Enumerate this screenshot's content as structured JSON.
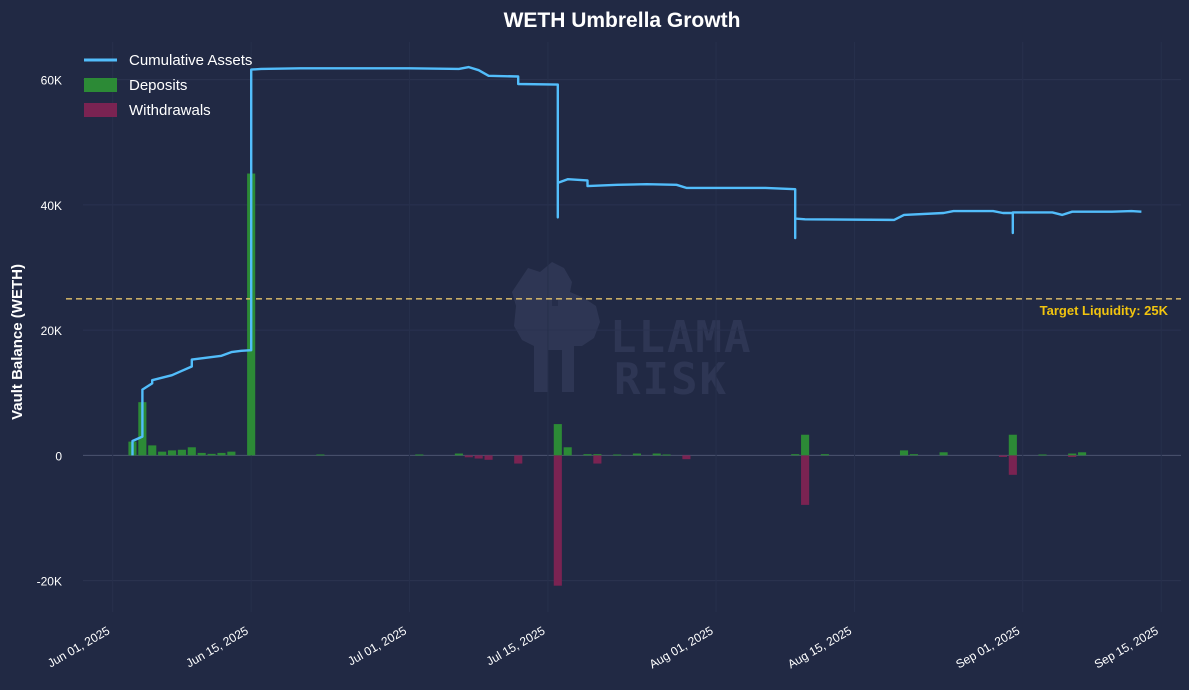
{
  "chart_data": {
    "type": "bar+line",
    "title": "WETH Umbrella Growth",
    "ylabel": "Vault Balance (WETH)",
    "xlabel": "",
    "xlim": [
      "2025-05-29",
      "2025-09-17"
    ],
    "ylim": [
      -25000,
      66000
    ],
    "y_ticks": [
      -20000,
      0,
      20000,
      40000,
      60000
    ],
    "y_tick_labels": [
      "-20K",
      "0",
      "20K",
      "40K",
      "60K"
    ],
    "x_ticks": [
      "2025-06-01",
      "2025-06-15",
      "2025-07-01",
      "2025-07-15",
      "2025-08-01",
      "2025-08-15",
      "2025-09-01",
      "2025-09-15"
    ],
    "x_tick_labels": [
      "Jun 01, 2025",
      "Jun 15, 2025",
      "Jul 01, 2025",
      "Jul 15, 2025",
      "Aug 01, 2025",
      "Aug 15, 2025",
      "Sep 01, 2025",
      "Sep 15, 2025"
    ],
    "legend_position": "top-left",
    "grid": true,
    "target_line": {
      "value": 25000,
      "label": "Target Liquidity: 25K",
      "color": "#e6c46a"
    },
    "series": [
      {
        "name": "Cumulative Assets",
        "kind": "line",
        "color": "#52bdfb",
        "points": [
          [
            "2025-06-03",
            0
          ],
          [
            "2025-06-03",
            2000
          ],
          [
            "2025-06-03",
            2300
          ],
          [
            "2025-06-04",
            3000
          ],
          [
            "2025-06-04",
            4000
          ],
          [
            "2025-06-04",
            8000
          ],
          [
            "2025-06-04",
            10500
          ],
          [
            "2025-06-05",
            11500
          ],
          [
            "2025-06-05",
            12000
          ],
          [
            "2025-06-06",
            12400
          ],
          [
            "2025-06-07",
            12800
          ],
          [
            "2025-06-08",
            13500
          ],
          [
            "2025-06-09",
            14200
          ],
          [
            "2025-06-09",
            15300
          ],
          [
            "2025-06-10",
            15500
          ],
          [
            "2025-06-11",
            15700
          ],
          [
            "2025-06-12",
            15900
          ],
          [
            "2025-06-13",
            16500
          ],
          [
            "2025-06-14",
            16700
          ],
          [
            "2025-06-15",
            16800
          ],
          [
            "2025-06-15",
            40000
          ],
          [
            "2025-06-15",
            61600
          ],
          [
            "2025-06-16",
            61700
          ],
          [
            "2025-06-20",
            61800
          ],
          [
            "2025-07-01",
            61800
          ],
          [
            "2025-07-06",
            61700
          ],
          [
            "2025-07-07",
            62000
          ],
          [
            "2025-07-08",
            61500
          ],
          [
            "2025-07-09",
            60600
          ],
          [
            "2025-07-12",
            60500
          ],
          [
            "2025-07-12",
            59300
          ],
          [
            "2025-07-16",
            59200
          ],
          [
            "2025-07-16",
            38000
          ],
          [
            "2025-07-16",
            43500
          ],
          [
            "2025-07-17",
            44100
          ],
          [
            "2025-07-18",
            44000
          ],
          [
            "2025-07-19",
            43900
          ],
          [
            "2025-07-19",
            43000
          ],
          [
            "2025-07-22",
            43200
          ],
          [
            "2025-07-25",
            43300
          ],
          [
            "2025-07-28",
            43200
          ],
          [
            "2025-07-29",
            42700
          ],
          [
            "2025-08-06",
            42700
          ],
          [
            "2025-08-09",
            42500
          ],
          [
            "2025-08-09",
            34700
          ],
          [
            "2025-08-09",
            37800
          ],
          [
            "2025-08-10",
            37700
          ],
          [
            "2025-08-19",
            37600
          ],
          [
            "2025-08-20",
            38400
          ],
          [
            "2025-08-24",
            38700
          ],
          [
            "2025-08-25",
            39000
          ],
          [
            "2025-08-29",
            39000
          ],
          [
            "2025-08-30",
            38700
          ],
          [
            "2025-08-31",
            38700
          ],
          [
            "2025-08-31",
            35500
          ],
          [
            "2025-08-31",
            38800
          ],
          [
            "2025-09-04",
            38800
          ],
          [
            "2025-09-05",
            38400
          ],
          [
            "2025-09-06",
            38900
          ],
          [
            "2025-09-10",
            38900
          ],
          [
            "2025-09-12",
            39000
          ],
          [
            "2025-09-13",
            38900
          ]
        ]
      },
      {
        "name": "Deposits",
        "kind": "bar",
        "color": "#2c8a36",
        "points": [
          [
            "2025-06-03",
            2200
          ],
          [
            "2025-06-04",
            8500
          ],
          [
            "2025-06-05",
            1600
          ],
          [
            "2025-06-06",
            600
          ],
          [
            "2025-06-07",
            800
          ],
          [
            "2025-06-08",
            900
          ],
          [
            "2025-06-09",
            1300
          ],
          [
            "2025-06-10",
            400
          ],
          [
            "2025-06-11",
            250
          ],
          [
            "2025-06-12",
            400
          ],
          [
            "2025-06-13",
            600
          ],
          [
            "2025-06-15",
            45000
          ],
          [
            "2025-06-22",
            150
          ],
          [
            "2025-07-02",
            150
          ],
          [
            "2025-07-06",
            300
          ],
          [
            "2025-07-16",
            5000
          ],
          [
            "2025-07-17",
            1300
          ],
          [
            "2025-07-19",
            200
          ],
          [
            "2025-07-20",
            200
          ],
          [
            "2025-07-22",
            150
          ],
          [
            "2025-07-24",
            300
          ],
          [
            "2025-07-26",
            300
          ],
          [
            "2025-07-27",
            150
          ],
          [
            "2025-08-09",
            200
          ],
          [
            "2025-08-10",
            3300
          ],
          [
            "2025-08-12",
            200
          ],
          [
            "2025-08-20",
            800
          ],
          [
            "2025-08-21",
            200
          ],
          [
            "2025-08-24",
            500
          ],
          [
            "2025-08-31",
            3300
          ],
          [
            "2025-09-03",
            150
          ],
          [
            "2025-09-06",
            300
          ],
          [
            "2025-09-07",
            500
          ]
        ]
      },
      {
        "name": "Withdrawals",
        "kind": "bar",
        "color": "#7a2352",
        "points": [
          [
            "2025-07-07",
            -300
          ],
          [
            "2025-07-08",
            -500
          ],
          [
            "2025-07-09",
            -700
          ],
          [
            "2025-07-12",
            -1300
          ],
          [
            "2025-07-16",
            -20800
          ],
          [
            "2025-07-20",
            -1300
          ],
          [
            "2025-07-29",
            -600
          ],
          [
            "2025-08-10",
            -7900
          ],
          [
            "2025-08-30",
            -250
          ],
          [
            "2025-08-31",
            -3100
          ],
          [
            "2025-09-06",
            -250
          ]
        ]
      }
    ]
  },
  "watermark": {
    "line1": "LLAMA",
    "line2": "RISK"
  }
}
